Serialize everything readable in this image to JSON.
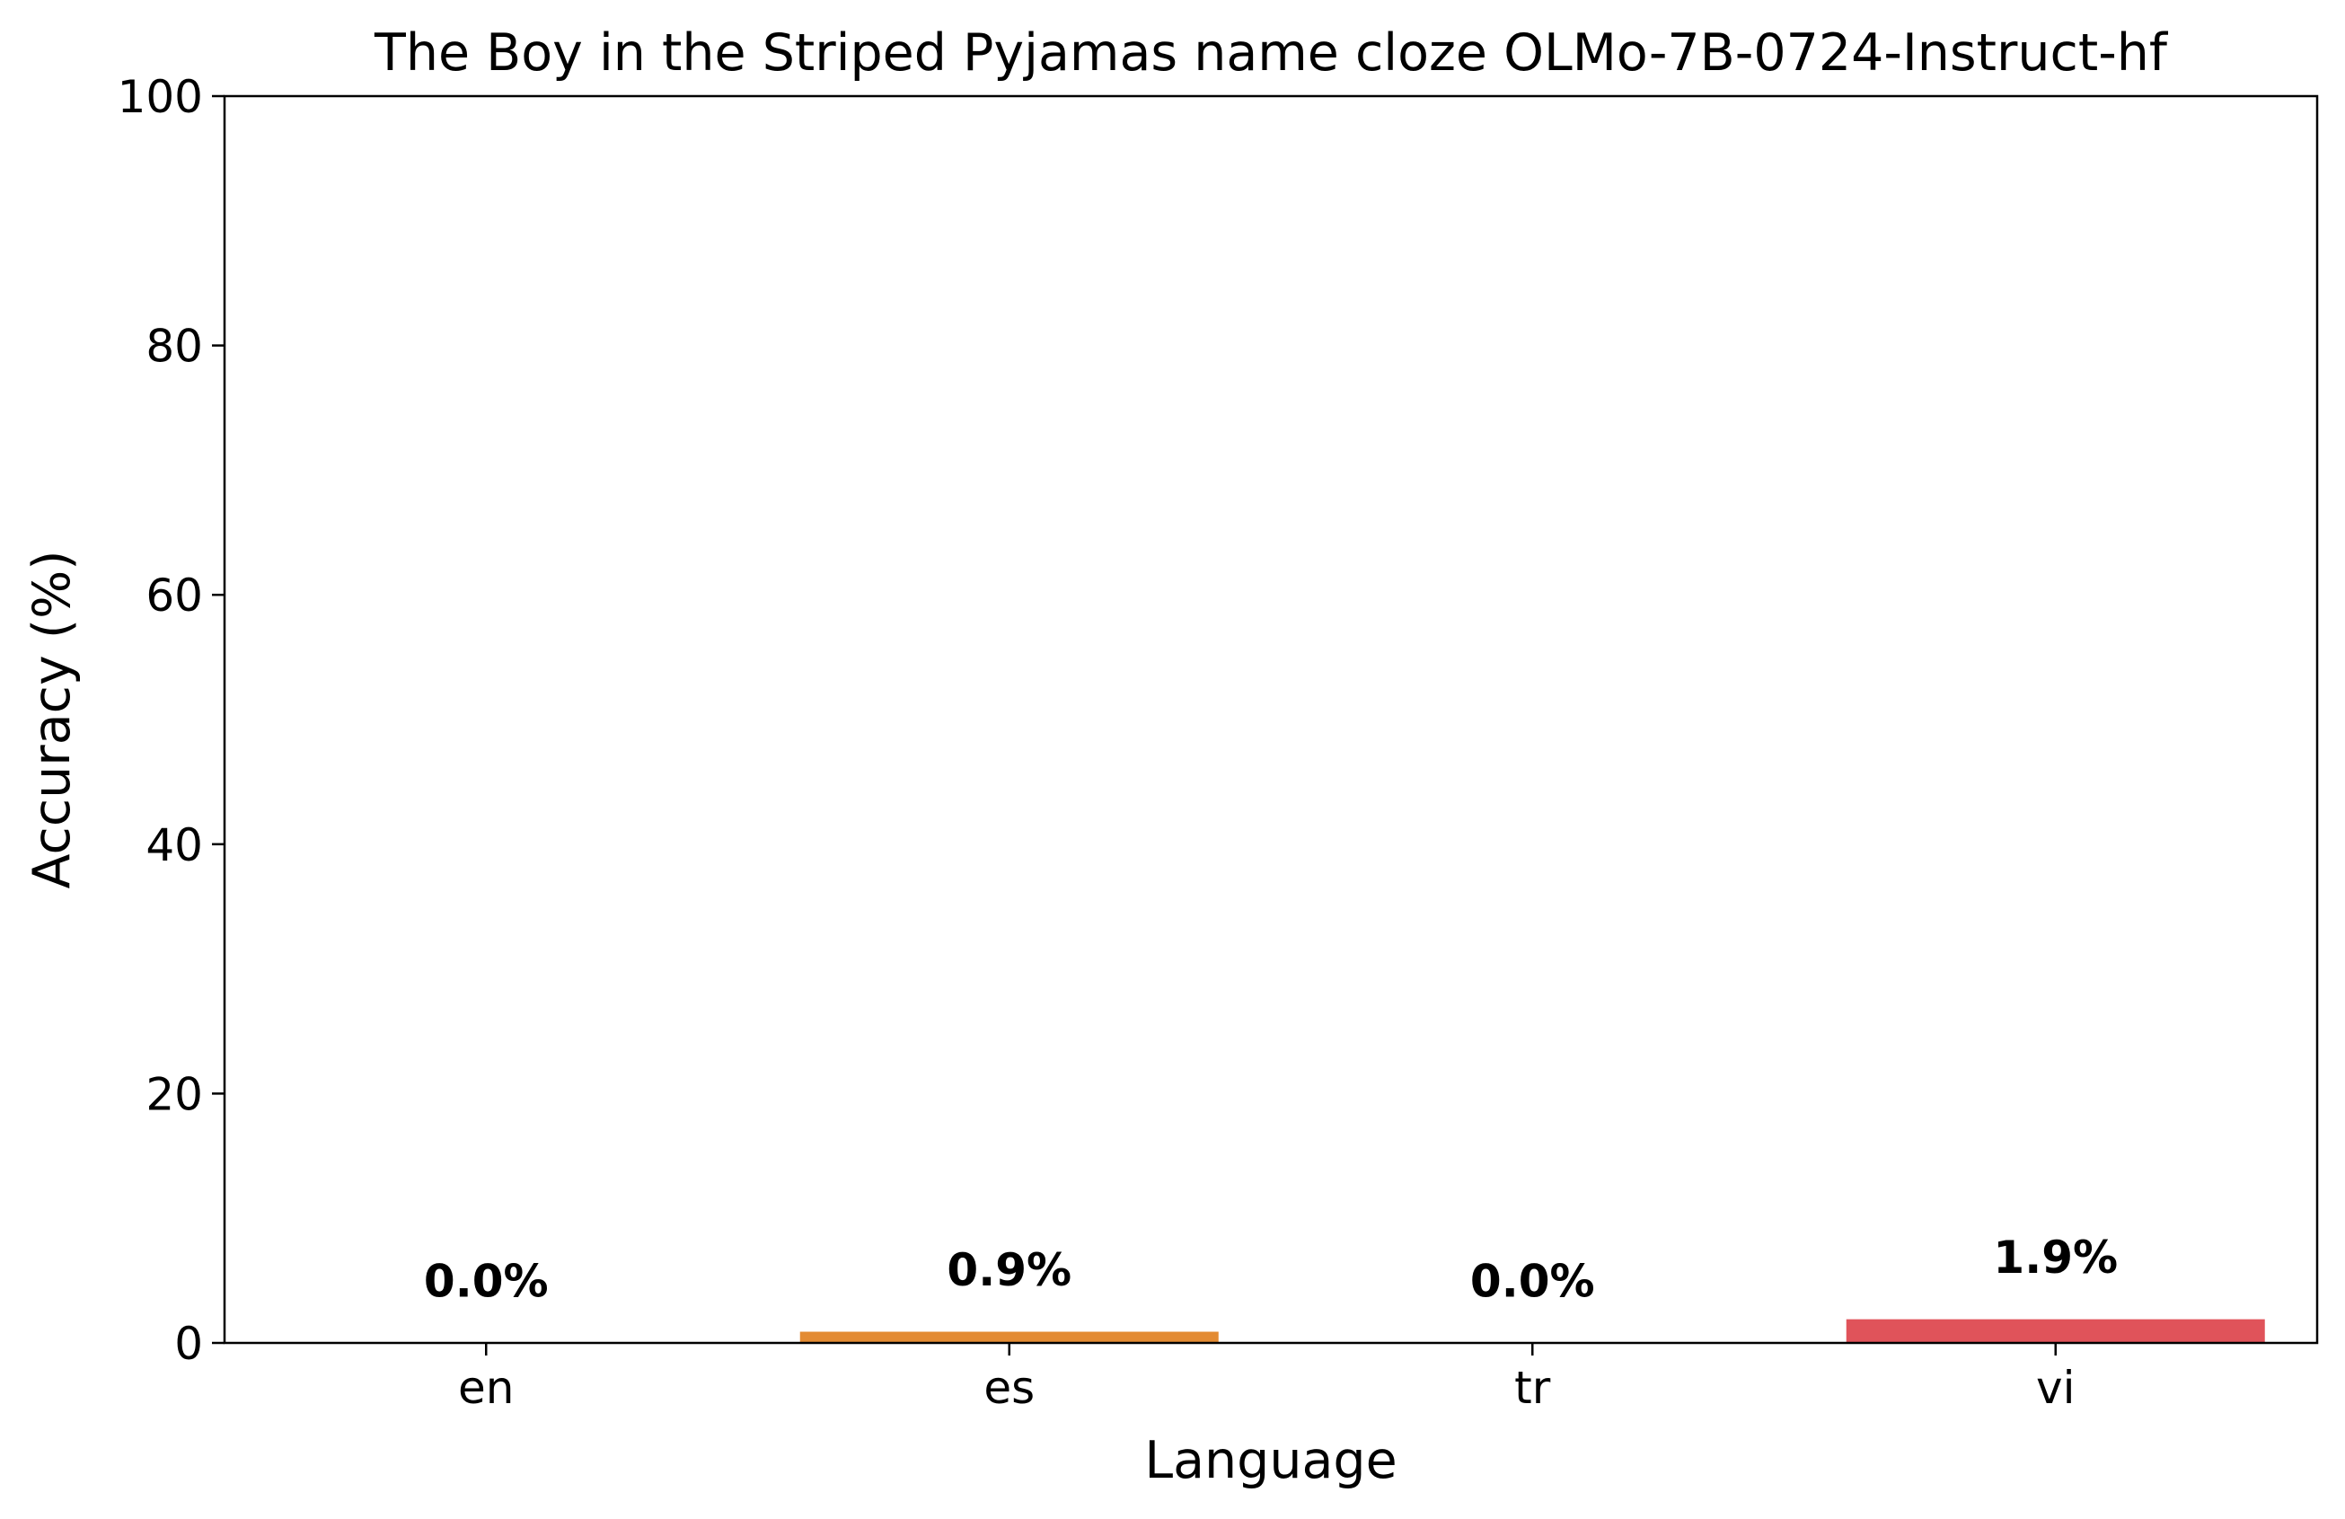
{
  "chart_data": {
    "type": "bar",
    "title": "The Boy in the Striped Pyjamas name cloze OLMo-7B-0724-Instruct-hf",
    "xlabel": "Language",
    "ylabel": "Accuracy (%)",
    "categories": [
      "en",
      "es",
      "tr",
      "vi"
    ],
    "values": [
      0.0,
      0.9,
      0.0,
      1.9
    ],
    "value_labels": [
      "0.0%",
      "0.9%",
      "0.0%",
      "1.9%"
    ],
    "bar_colors": [
      "#9fc98f",
      "#e38b33",
      "#a7c7e7",
      "#e0535a"
    ],
    "ylim": [
      0,
      100
    ],
    "yticks": [
      0,
      20,
      40,
      60,
      80,
      100
    ],
    "ytick_labels": [
      "0",
      "20",
      "40",
      "60",
      "80",
      "100"
    ],
    "grid": false,
    "legend": false
  }
}
